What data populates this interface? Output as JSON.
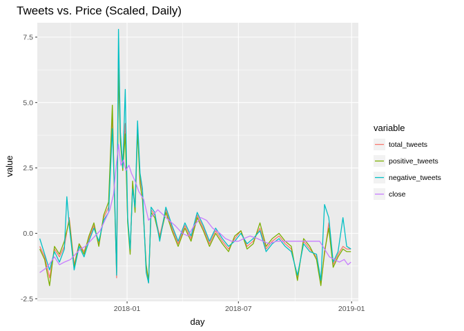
{
  "chart_data": {
    "type": "line",
    "title": "Tweets vs. Price (Scaled, Daily)",
    "xlabel": "day",
    "ylabel": "value",
    "x_range": [
      "2017-08-08",
      "2019-01-12"
    ],
    "x_ticks": [
      {
        "date": "2018-01-01",
        "label": "2018-01"
      },
      {
        "date": "2018-07-01",
        "label": "2018-07"
      },
      {
        "date": "2019-01-01",
        "label": "2019-01"
      }
    ],
    "x_minor_ticks": [
      "2017-10-01",
      "2018-04-01",
      "2018-10-01"
    ],
    "ylim": [
      -2.6,
      8.05
    ],
    "y_ticks": [
      {
        "value": -2.5,
        "label": "-2.5"
      },
      {
        "value": 0,
        "label": "0.0"
      },
      {
        "value": 2.5,
        "label": "2.5"
      },
      {
        "value": 5,
        "label": "5.0"
      },
      {
        "value": 7.5,
        "label": "7.5"
      }
    ],
    "grid": true,
    "legend_position": "right",
    "legend_title": "variable",
    "series": [
      {
        "name": "total_tweets",
        "color": "#F8766D",
        "points": [
          [
            "2017-08-12",
            -0.5
          ],
          [
            "2017-08-20",
            -0.9
          ],
          [
            "2017-08-28",
            -1.7
          ],
          [
            "2017-09-05",
            -0.6
          ],
          [
            "2017-09-13",
            -0.9
          ],
          [
            "2017-09-21",
            -0.5
          ],
          [
            "2017-09-29",
            0.6
          ],
          [
            "2017-10-07",
            -1.2
          ],
          [
            "2017-10-15",
            -0.4
          ],
          [
            "2017-10-23",
            -0.7
          ],
          [
            "2017-10-31",
            -0.2
          ],
          [
            "2017-11-08",
            0.3
          ],
          [
            "2017-11-16",
            -0.4
          ],
          [
            "2017-11-24",
            0.6
          ],
          [
            "2017-12-02",
            1.0
          ],
          [
            "2017-12-08",
            4.6
          ],
          [
            "2017-12-12",
            1.2
          ],
          [
            "2017-12-15",
            -1.7
          ],
          [
            "2017-12-18",
            6.7
          ],
          [
            "2017-12-21",
            3.6
          ],
          [
            "2017-12-25",
            2.7
          ],
          [
            "2017-12-29",
            4.2
          ],
          [
            "2018-01-02",
            0.5
          ],
          [
            "2018-01-06",
            -0.7
          ],
          [
            "2018-01-10",
            1.9
          ],
          [
            "2018-01-14",
            0.9
          ],
          [
            "2018-01-18",
            4.1
          ],
          [
            "2018-01-22",
            2.1
          ],
          [
            "2018-01-26",
            1.6
          ],
          [
            "2018-02-01",
            -1.4
          ],
          [
            "2018-02-05",
            -1.9
          ],
          [
            "2018-02-09",
            0.9
          ],
          [
            "2018-02-15",
            0.7
          ],
          [
            "2018-02-23",
            -0.1
          ],
          [
            "2018-03-05",
            0.9
          ],
          [
            "2018-03-15",
            0.2
          ],
          [
            "2018-03-25",
            -0.4
          ],
          [
            "2018-04-05",
            0.3
          ],
          [
            "2018-04-15",
            -0.2
          ],
          [
            "2018-04-25",
            0.7
          ],
          [
            "2018-05-05",
            0.2
          ],
          [
            "2018-05-15",
            -0.4
          ],
          [
            "2018-05-25",
            0.1
          ],
          [
            "2018-06-05",
            -0.3
          ],
          [
            "2018-06-15",
            -0.6
          ],
          [
            "2018-06-25",
            -0.2
          ],
          [
            "2018-07-05",
            0.1
          ],
          [
            "2018-07-15",
            -0.5
          ],
          [
            "2018-07-25",
            -0.3
          ],
          [
            "2018-08-05",
            0.2
          ],
          [
            "2018-08-15",
            -0.6
          ],
          [
            "2018-08-25",
            -0.3
          ],
          [
            "2018-09-05",
            -0.1
          ],
          [
            "2018-09-15",
            -0.4
          ],
          [
            "2018-09-25",
            -0.6
          ],
          [
            "2018-10-05",
            -1.7
          ],
          [
            "2018-10-15",
            -0.3
          ],
          [
            "2018-10-25",
            -0.6
          ],
          [
            "2018-11-05",
            -0.9
          ],
          [
            "2018-11-12",
            -1.9
          ],
          [
            "2018-11-18",
            -0.8
          ],
          [
            "2018-11-25",
            0.4
          ],
          [
            "2018-12-02",
            -1.2
          ],
          [
            "2018-12-10",
            -0.8
          ],
          [
            "2018-12-18",
            -0.5
          ],
          [
            "2018-12-24",
            -0.6
          ],
          [
            "2018-12-31",
            -0.6
          ]
        ]
      },
      {
        "name": "positive_tweets",
        "color": "#7CAE00",
        "points": [
          [
            "2017-08-12",
            -0.6
          ],
          [
            "2017-08-20",
            -1.0
          ],
          [
            "2017-08-28",
            -2.0
          ],
          [
            "2017-09-05",
            -0.5
          ],
          [
            "2017-09-13",
            -0.8
          ],
          [
            "2017-09-21",
            -0.3
          ],
          [
            "2017-09-29",
            0.5
          ],
          [
            "2017-10-07",
            -1.3
          ],
          [
            "2017-10-15",
            -0.4
          ],
          [
            "2017-10-23",
            -0.8
          ],
          [
            "2017-10-31",
            -0.1
          ],
          [
            "2017-11-08",
            0.4
          ],
          [
            "2017-11-16",
            -0.5
          ],
          [
            "2017-11-24",
            0.7
          ],
          [
            "2017-12-02",
            1.2
          ],
          [
            "2017-12-08",
            4.9
          ],
          [
            "2017-12-12",
            1.0
          ],
          [
            "2017-12-15",
            -1.5
          ],
          [
            "2017-12-18",
            6.3
          ],
          [
            "2017-12-21",
            3.5
          ],
          [
            "2017-12-25",
            2.4
          ],
          [
            "2017-12-29",
            3.8
          ],
          [
            "2018-01-02",
            0.4
          ],
          [
            "2018-01-06",
            -0.8
          ],
          [
            "2018-01-10",
            2.0
          ],
          [
            "2018-01-14",
            0.8
          ],
          [
            "2018-01-18",
            3.9
          ],
          [
            "2018-01-22",
            1.9
          ],
          [
            "2018-01-26",
            1.3
          ],
          [
            "2018-02-01",
            -1.2
          ],
          [
            "2018-02-05",
            -1.8
          ],
          [
            "2018-02-09",
            0.8
          ],
          [
            "2018-02-15",
            0.6
          ],
          [
            "2018-02-23",
            -0.2
          ],
          [
            "2018-03-05",
            0.8
          ],
          [
            "2018-03-15",
            0.1
          ],
          [
            "2018-03-25",
            -0.5
          ],
          [
            "2018-04-05",
            0.2
          ],
          [
            "2018-04-15",
            -0.3
          ],
          [
            "2018-04-25",
            0.6
          ],
          [
            "2018-05-05",
            0.1
          ],
          [
            "2018-05-15",
            -0.5
          ],
          [
            "2018-05-25",
            0.0
          ],
          [
            "2018-06-05",
            -0.4
          ],
          [
            "2018-06-15",
            -0.7
          ],
          [
            "2018-06-25",
            -0.1
          ],
          [
            "2018-07-05",
            0.1
          ],
          [
            "2018-07-15",
            -0.6
          ],
          [
            "2018-07-25",
            -0.4
          ],
          [
            "2018-08-05",
            0.4
          ],
          [
            "2018-08-15",
            -0.5
          ],
          [
            "2018-08-25",
            -0.2
          ],
          [
            "2018-09-05",
            0.0
          ],
          [
            "2018-09-15",
            -0.3
          ],
          [
            "2018-09-25",
            -0.5
          ],
          [
            "2018-10-05",
            -1.8
          ],
          [
            "2018-10-15",
            -0.2
          ],
          [
            "2018-10-25",
            -0.5
          ],
          [
            "2018-11-05",
            -1.0
          ],
          [
            "2018-11-12",
            -2.0
          ],
          [
            "2018-11-18",
            -0.7
          ],
          [
            "2018-11-25",
            0.2
          ],
          [
            "2018-12-02",
            -1.3
          ],
          [
            "2018-12-10",
            -0.9
          ],
          [
            "2018-12-18",
            -0.6
          ],
          [
            "2018-12-24",
            -0.7
          ],
          [
            "2018-12-31",
            -0.7
          ]
        ]
      },
      {
        "name": "negative_tweets",
        "color": "#00BFC4",
        "points": [
          [
            "2017-08-12",
            -0.2
          ],
          [
            "2017-08-20",
            -0.8
          ],
          [
            "2017-08-28",
            -1.4
          ],
          [
            "2017-09-05",
            -0.7
          ],
          [
            "2017-09-13",
            -1.1
          ],
          [
            "2017-09-21",
            -0.6
          ],
          [
            "2017-09-25",
            1.4
          ],
          [
            "2017-09-29",
            0.3
          ],
          [
            "2017-10-07",
            -1.4
          ],
          [
            "2017-10-15",
            -0.5
          ],
          [
            "2017-10-23",
            -0.9
          ],
          [
            "2017-10-31",
            -0.3
          ],
          [
            "2017-11-08",
            0.2
          ],
          [
            "2017-11-16",
            -0.3
          ],
          [
            "2017-11-24",
            0.5
          ],
          [
            "2017-12-02",
            0.8
          ],
          [
            "2017-12-08",
            4.0
          ],
          [
            "2017-12-12",
            1.3
          ],
          [
            "2017-12-15",
            -1.6
          ],
          [
            "2017-12-18",
            7.8
          ],
          [
            "2017-12-21",
            3.9
          ],
          [
            "2017-12-25",
            2.5
          ],
          [
            "2017-12-29",
            5.5
          ],
          [
            "2018-01-02",
            0.6
          ],
          [
            "2018-01-06",
            -0.6
          ],
          [
            "2018-01-10",
            1.7
          ],
          [
            "2018-01-14",
            1.0
          ],
          [
            "2018-01-18",
            4.3
          ],
          [
            "2018-01-22",
            2.3
          ],
          [
            "2018-01-26",
            1.7
          ],
          [
            "2018-02-01",
            -1.5
          ],
          [
            "2018-02-05",
            -1.9
          ],
          [
            "2018-02-09",
            1.0
          ],
          [
            "2018-02-15",
            0.8
          ],
          [
            "2018-02-23",
            -0.3
          ],
          [
            "2018-03-05",
            1.0
          ],
          [
            "2018-03-15",
            0.3
          ],
          [
            "2018-03-25",
            -0.3
          ],
          [
            "2018-04-05",
            0.4
          ],
          [
            "2018-04-15",
            -0.1
          ],
          [
            "2018-04-25",
            0.8
          ],
          [
            "2018-05-05",
            0.3
          ],
          [
            "2018-05-15",
            -0.3
          ],
          [
            "2018-05-25",
            0.2
          ],
          [
            "2018-06-05",
            -0.2
          ],
          [
            "2018-06-15",
            -0.5
          ],
          [
            "2018-06-25",
            -0.3
          ],
          [
            "2018-07-05",
            0.0
          ],
          [
            "2018-07-15",
            -0.4
          ],
          [
            "2018-07-25",
            -0.2
          ],
          [
            "2018-08-05",
            0.1
          ],
          [
            "2018-08-15",
            -0.7
          ],
          [
            "2018-08-25",
            -0.4
          ],
          [
            "2018-09-05",
            -0.2
          ],
          [
            "2018-09-15",
            -0.5
          ],
          [
            "2018-09-25",
            -0.7
          ],
          [
            "2018-10-05",
            -1.6
          ],
          [
            "2018-10-15",
            -0.4
          ],
          [
            "2018-10-25",
            -0.7
          ],
          [
            "2018-11-05",
            -0.8
          ],
          [
            "2018-11-12",
            -1.8
          ],
          [
            "2018-11-18",
            1.1
          ],
          [
            "2018-11-25",
            0.6
          ],
          [
            "2018-12-02",
            -1.1
          ],
          [
            "2018-12-10",
            -0.7
          ],
          [
            "2018-12-18",
            0.6
          ],
          [
            "2018-12-24",
            -0.5
          ],
          [
            "2018-12-31",
            -0.6
          ]
        ]
      },
      {
        "name": "close",
        "color": "#C77CFF",
        "points": [
          [
            "2017-08-12",
            -1.5
          ],
          [
            "2017-08-24",
            -1.3
          ],
          [
            "2017-09-05",
            -0.9
          ],
          [
            "2017-09-13",
            -1.2
          ],
          [
            "2017-09-21",
            -1.1
          ],
          [
            "2017-10-01",
            -1.0
          ],
          [
            "2017-10-09",
            -0.8
          ],
          [
            "2017-10-17",
            -0.6
          ],
          [
            "2017-10-25",
            -0.5
          ],
          [
            "2017-11-02",
            -0.3
          ],
          [
            "2017-11-10",
            -0.1
          ],
          [
            "2017-11-18",
            0.1
          ],
          [
            "2017-11-26",
            0.5
          ],
          [
            "2017-12-04",
            0.9
          ],
          [
            "2017-12-10",
            1.5
          ],
          [
            "2017-12-14",
            2.5
          ],
          [
            "2017-12-18",
            3.4
          ],
          [
            "2017-12-22",
            2.6
          ],
          [
            "2017-12-26",
            2.8
          ],
          [
            "2017-12-30",
            2.4
          ],
          [
            "2018-01-04",
            2.6
          ],
          [
            "2018-01-08",
            2.3
          ],
          [
            "2018-01-14",
            2.0
          ],
          [
            "2018-01-20",
            1.6
          ],
          [
            "2018-01-28",
            1.3
          ],
          [
            "2018-02-05",
            0.5
          ],
          [
            "2018-02-12",
            0.7
          ],
          [
            "2018-02-20",
            0.9
          ],
          [
            "2018-03-01",
            0.7
          ],
          [
            "2018-03-10",
            0.5
          ],
          [
            "2018-03-20",
            0.3
          ],
          [
            "2018-04-01",
            0.0
          ],
          [
            "2018-04-10",
            -0.1
          ],
          [
            "2018-04-20",
            0.3
          ],
          [
            "2018-05-01",
            0.6
          ],
          [
            "2018-05-10",
            0.5
          ],
          [
            "2018-05-20",
            0.2
          ],
          [
            "2018-06-01",
            0.0
          ],
          [
            "2018-06-10",
            -0.2
          ],
          [
            "2018-06-20",
            -0.3
          ],
          [
            "2018-07-01",
            -0.3
          ],
          [
            "2018-07-10",
            -0.2
          ],
          [
            "2018-07-20",
            -0.1
          ],
          [
            "2018-08-01",
            -0.2
          ],
          [
            "2018-08-10",
            -0.3
          ],
          [
            "2018-08-20",
            -0.4
          ],
          [
            "2018-09-01",
            -0.3
          ],
          [
            "2018-09-10",
            -0.3
          ],
          [
            "2018-09-20",
            -0.3
          ],
          [
            "2018-10-01",
            -0.3
          ],
          [
            "2018-10-10",
            -0.3
          ],
          [
            "2018-10-20",
            -0.3
          ],
          [
            "2018-11-01",
            -0.3
          ],
          [
            "2018-11-10",
            -0.3
          ],
          [
            "2018-11-18",
            -0.6
          ],
          [
            "2018-11-26",
            -0.9
          ],
          [
            "2018-12-04",
            -1.0
          ],
          [
            "2018-12-12",
            -1.1
          ],
          [
            "2018-12-20",
            -1.0
          ],
          [
            "2018-12-26",
            -1.2
          ],
          [
            "2018-12-31",
            -1.1
          ]
        ]
      }
    ]
  }
}
